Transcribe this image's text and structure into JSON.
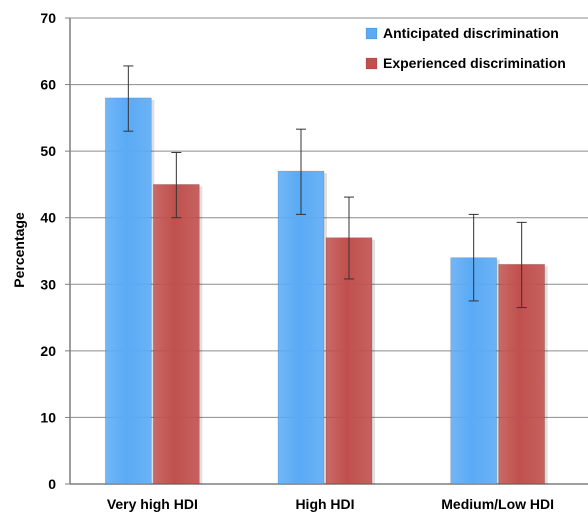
{
  "chart_data": {
    "type": "bar",
    "title": "",
    "xlabel": "",
    "ylabel": "Percentage",
    "ylim": [
      0,
      70
    ],
    "yticks": [
      0,
      10,
      20,
      30,
      40,
      50,
      60,
      70
    ],
    "ytick_labels": [
      "0",
      "10",
      "20",
      "30",
      "40",
      "50",
      "60",
      "70"
    ],
    "grid": true,
    "legend_position": "top-right",
    "categories": [
      "Very high HDI",
      "High HDI",
      "Medium/Low HDI"
    ],
    "series": [
      {
        "name": "Anticipated discrimination",
        "color": "#5aaaf5",
        "values": [
          58,
          47,
          34
        ],
        "error_low": [
          53,
          40.5,
          27.5
        ],
        "error_high": [
          62.8,
          53.3,
          40.5
        ]
      },
      {
        "name": "Experienced discrimination",
        "color": "#c0504d",
        "values": [
          45,
          37,
          33
        ],
        "error_low": [
          40,
          30.8,
          26.5
        ],
        "error_high": [
          49.8,
          43.1,
          39.3
        ]
      }
    ]
  }
}
